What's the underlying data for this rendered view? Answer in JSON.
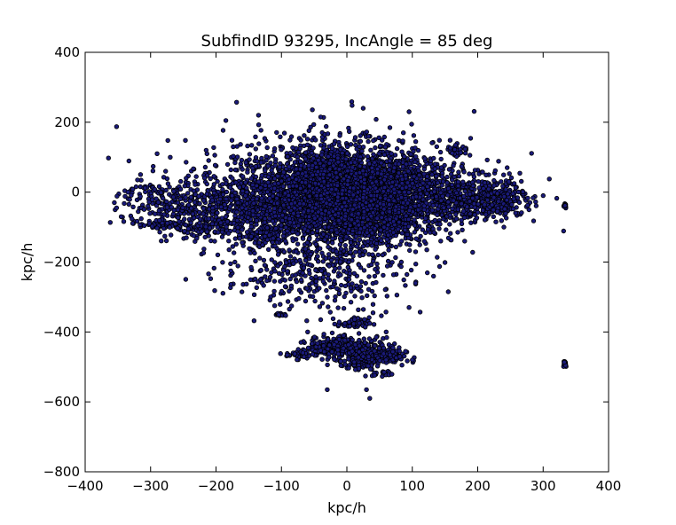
{
  "chart_data": {
    "type": "scatter",
    "title": "SubfindID 93295, IncAngle = 85 deg",
    "xlabel": "kpc/h",
    "ylabel": "kpc/h",
    "xlim": [
      -400,
      400
    ],
    "ylim": [
      -800,
      400
    ],
    "xticks": [
      -400,
      -300,
      -200,
      -100,
      0,
      100,
      200,
      300,
      400
    ],
    "yticks": [
      -800,
      -600,
      -400,
      -200,
      0,
      200,
      400
    ],
    "xtick_labels": [
      "−400",
      "−300",
      "−200",
      "−100",
      "0",
      "100",
      "200",
      "300",
      "400"
    ],
    "ytick_labels": [
      "−800",
      "−600",
      "−400",
      "−200",
      "0",
      "200",
      "400"
    ],
    "grid": false,
    "marker_fill": "#1a1a7a",
    "marker_edge": "#000000",
    "clusters": [
      {
        "x": -20,
        "y": -10,
        "sx": 75,
        "sy": 75,
        "n": 2400
      },
      {
        "x": 10,
        "y": -20,
        "sx": 50,
        "sy": 55,
        "n": 1400
      },
      {
        "x": 80,
        "y": -10,
        "sx": 40,
        "sy": 60,
        "n": 500
      },
      {
        "x": -150,
        "y": -40,
        "sx": 60,
        "sy": 50,
        "n": 500
      },
      {
        "x": 190,
        "y": -20,
        "sx": 40,
        "sy": 30,
        "n": 400
      },
      {
        "x": 235,
        "y": -10,
        "sx": 20,
        "sy": 25,
        "n": 120
      },
      {
        "x": -270,
        "y": -30,
        "sx": 40,
        "sy": 40,
        "n": 220
      },
      {
        "x": -220,
        "y": -100,
        "sx": 20,
        "sy": 10,
        "n": 80
      },
      {
        "x": -280,
        "y": -95,
        "sx": 15,
        "sy": 8,
        "n": 60
      },
      {
        "x": -130,
        "y": -120,
        "sx": 20,
        "sy": 15,
        "n": 80
      },
      {
        "x": 170,
        "y": 120,
        "sx": 10,
        "sy": 8,
        "n": 40
      },
      {
        "x": -50,
        "y": -230,
        "sx": 70,
        "sy": 50,
        "n": 350
      },
      {
        "x": -20,
        "y": -440,
        "sx": 20,
        "sy": 15,
        "n": 180
      },
      {
        "x": 25,
        "y": -460,
        "sx": 25,
        "sy": 20,
        "n": 200
      },
      {
        "x": 60,
        "y": -470,
        "sx": 15,
        "sy": 12,
        "n": 100
      },
      {
        "x": 10,
        "y": -375,
        "sx": 12,
        "sy": 8,
        "n": 60
      },
      {
        "x": 20,
        "y": -495,
        "sx": 12,
        "sy": 6,
        "n": 40
      },
      {
        "x": 55,
        "y": -520,
        "sx": 8,
        "sy": 4,
        "n": 20
      },
      {
        "x": -70,
        "y": -465,
        "sx": 12,
        "sy": 6,
        "n": 40
      },
      {
        "x": -100,
        "y": -350,
        "sx": 5,
        "sy": 3,
        "n": 12
      },
      {
        "x": 333,
        "y": -38,
        "sx": 1.5,
        "sy": 4,
        "n": 18
      },
      {
        "x": 333,
        "y": -490,
        "sx": 1.5,
        "sy": 5,
        "n": 18
      },
      {
        "x": 20,
        "y": 40,
        "sx": 110,
        "sy": 70,
        "n": 300
      }
    ],
    "outliers": [
      {
        "x": -352,
        "y": -45
      },
      {
        "x": -345,
        "y": -70
      },
      {
        "x": -320,
        "y": 35
      },
      {
        "x": -290,
        "y": 110
      },
      {
        "x": -270,
        "y": 100
      },
      {
        "x": -215,
        "y": 120
      },
      {
        "x": -185,
        "y": 205
      },
      {
        "x": -135,
        "y": 220
      },
      {
        "x": -40,
        "y": 215
      },
      {
        "x": 8,
        "y": 248
      },
      {
        "x": 25,
        "y": 240
      },
      {
        "x": 95,
        "y": 230
      },
      {
        "x": 300,
        "y": -10
      },
      {
        "x": 155,
        "y": -285
      },
      {
        "x": 95,
        "y": -330
      },
      {
        "x": -30,
        "y": -565
      },
      {
        "x": 30,
        "y": -565
      },
      {
        "x": 35,
        "y": -590
      },
      {
        "x": -5,
        "y": -410
      },
      {
        "x": 100,
        "y": -480
      },
      {
        "x": 245,
        "y": 70
      },
      {
        "x": 230,
        "y": -55
      },
      {
        "x": 240,
        "y": -100
      },
      {
        "x": 180,
        "y": -140
      },
      {
        "x": -60,
        "y": -400
      },
      {
        "x": 45,
        "y": -415
      },
      {
        "x": 60,
        "y": -400
      },
      {
        "x": -40,
        "y": -365
      },
      {
        "x": 40,
        "y": -345
      }
    ]
  }
}
